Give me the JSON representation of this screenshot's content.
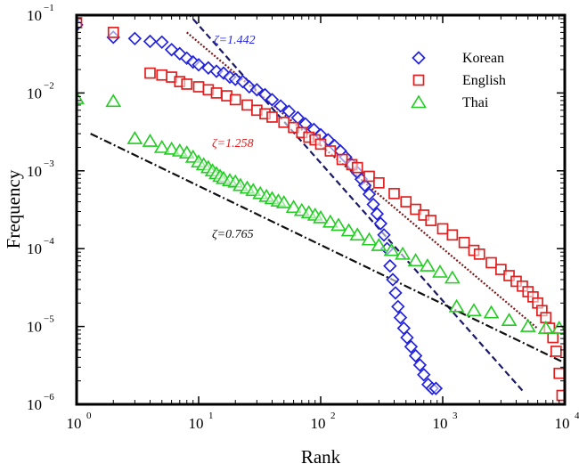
{
  "chart_data": {
    "type": "scatter",
    "xlabel": "Rank",
    "ylabel": "Frequency",
    "xscale": "log",
    "yscale": "log",
    "xlim": [
      1,
      10000
    ],
    "ylim": [
      1e-06,
      0.1
    ],
    "x_ticks": [
      {
        "base": "10",
        "exp": "0"
      },
      {
        "base": "10",
        "exp": "1"
      },
      {
        "base": "10",
        "exp": "2"
      },
      {
        "base": "10",
        "exp": "3"
      },
      {
        "base": "10",
        "exp": "4"
      }
    ],
    "y_ticks": [
      {
        "base": "10",
        "exp": "−6"
      },
      {
        "base": "10",
        "exp": "−5"
      },
      {
        "base": "10",
        "exp": "−4"
      },
      {
        "base": "10",
        "exp": "−3"
      },
      {
        "base": "10",
        "exp": "−2"
      },
      {
        "base": "10",
        "exp": "−1"
      }
    ],
    "legend_position": "top-right",
    "grid": false,
    "series": [
      {
        "name": "Korean",
        "marker": "diamond",
        "color": "#2222dd",
        "points": [
          [
            1,
            0.075
          ],
          [
            2,
            0.052
          ],
          [
            3,
            0.05
          ],
          [
            4,
            0.046
          ],
          [
            5,
            0.045
          ],
          [
            6,
            0.036
          ],
          [
            7,
            0.032
          ],
          [
            8,
            0.028
          ],
          [
            9,
            0.025
          ],
          [
            10,
            0.023
          ],
          [
            12,
            0.021
          ],
          [
            14,
            0.019
          ],
          [
            16,
            0.018
          ],
          [
            18,
            0.016
          ],
          [
            20,
            0.015
          ],
          [
            23,
            0.014
          ],
          [
            26,
            0.012
          ],
          [
            30,
            0.011
          ],
          [
            35,
            0.0095
          ],
          [
            40,
            0.0082
          ],
          [
            47,
            0.0068
          ],
          [
            55,
            0.0058
          ],
          [
            65,
            0.0048
          ],
          [
            75,
            0.004
          ],
          [
            88,
            0.0034
          ],
          [
            100,
            0.0029
          ],
          [
            115,
            0.0025
          ],
          [
            130,
            0.0021
          ],
          [
            145,
            0.0018
          ],
          [
            160,
            0.0015
          ],
          [
            180,
            0.0012
          ],
          [
            200,
            0.00095
          ],
          [
            215,
            0.00078
          ],
          [
            230,
            0.00065
          ],
          [
            250,
            0.0005
          ],
          [
            270,
            0.00037
          ],
          [
            290,
            0.00028
          ],
          [
            310,
            0.00021
          ],
          [
            330,
            0.00015
          ],
          [
            350,
            0.0001
          ],
          [
            370,
            6e-05
          ],
          [
            390,
            4e-05
          ],
          [
            410,
            2.7e-05
          ],
          [
            430,
            1.8e-05
          ],
          [
            450,
            1.3e-05
          ],
          [
            480,
            9.5e-06
          ],
          [
            510,
            7.2e-06
          ],
          [
            550,
            5.5e-06
          ],
          [
            600,
            4.2e-06
          ],
          [
            650,
            3.2e-06
          ],
          [
            700,
            2.4e-06
          ],
          [
            760,
            1.8e-06
          ],
          [
            820,
            1.6e-06
          ],
          [
            880,
            1.6e-06
          ]
        ]
      },
      {
        "name": "English",
        "marker": "square",
        "color": "#e02020",
        "points": [
          [
            1,
            0.08
          ],
          [
            2,
            0.06
          ],
          [
            4,
            0.018
          ],
          [
            5,
            0.017
          ],
          [
            6,
            0.016
          ],
          [
            7,
            0.014
          ],
          [
            8,
            0.013
          ],
          [
            10,
            0.012
          ],
          [
            12,
            0.011
          ],
          [
            14,
            0.01
          ],
          [
            17,
            0.0092
          ],
          [
            20,
            0.0082
          ],
          [
            25,
            0.007
          ],
          [
            30,
            0.006
          ],
          [
            35,
            0.0054
          ],
          [
            40,
            0.0049
          ],
          [
            50,
            0.0042
          ],
          [
            60,
            0.0036
          ],
          [
            70,
            0.0031
          ],
          [
            80,
            0.0027
          ],
          [
            90,
            0.0025
          ],
          [
            100,
            0.0022
          ],
          [
            120,
            0.0018
          ],
          [
            150,
            0.0014
          ],
          [
            180,
            0.0012
          ],
          [
            200,
            0.0011
          ],
          [
            250,
            0.00085
          ],
          [
            300,
            0.0007
          ],
          [
            400,
            0.00051
          ],
          [
            500,
            0.0004
          ],
          [
            600,
            0.00032
          ],
          [
            700,
            0.00027
          ],
          [
            800,
            0.00023
          ],
          [
            1000,
            0.00018
          ],
          [
            1200,
            0.00015
          ],
          [
            1500,
            0.00012
          ],
          [
            1800,
            9.5e-05
          ],
          [
            2000,
            8.5e-05
          ],
          [
            2500,
            6.6e-05
          ],
          [
            3000,
            5.4e-05
          ],
          [
            3500,
            4.5e-05
          ],
          [
            4000,
            3.8e-05
          ],
          [
            4500,
            3.3e-05
          ],
          [
            5000,
            2.8e-05
          ],
          [
            5500,
            2.4e-05
          ],
          [
            6000,
            2e-05
          ],
          [
            6500,
            1.6e-05
          ],
          [
            7000,
            1.3e-05
          ],
          [
            7500,
            9.5e-06
          ],
          [
            8000,
            7.2e-06
          ],
          [
            8500,
            4.8e-06
          ],
          [
            9000,
            2.5e-06
          ],
          [
            9500,
            1.3e-06
          ]
        ]
      },
      {
        "name": "Thai",
        "marker": "triangle",
        "color": "#22cc22",
        "points": [
          [
            1,
            0.0085
          ],
          [
            2,
            0.0078
          ],
          [
            3,
            0.0026
          ],
          [
            4,
            0.0024
          ],
          [
            5,
            0.002
          ],
          [
            6,
            0.0019
          ],
          [
            7,
            0.0018
          ],
          [
            8,
            0.0017
          ],
          [
            9,
            0.0015
          ],
          [
            10,
            0.0013
          ],
          [
            11,
            0.0012
          ],
          [
            12,
            0.0011
          ],
          [
            13,
            0.001
          ],
          [
            14,
            0.00092
          ],
          [
            15,
            0.00085
          ],
          [
            16,
            0.0008
          ],
          [
            18,
            0.00075
          ],
          [
            20,
            0.00072
          ],
          [
            22,
            0.00065
          ],
          [
            25,
            0.0006
          ],
          [
            28,
            0.00056
          ],
          [
            32,
            0.00051
          ],
          [
            36,
            0.00047
          ],
          [
            40,
            0.00044
          ],
          [
            45,
            0.00041
          ],
          [
            50,
            0.00039
          ],
          [
            60,
            0.00034
          ],
          [
            70,
            0.00031
          ],
          [
            80,
            0.00029
          ],
          [
            90,
            0.00027
          ],
          [
            100,
            0.00025
          ],
          [
            120,
            0.00022
          ],
          [
            140,
            0.0002
          ],
          [
            170,
            0.00017
          ],
          [
            200,
            0.00015
          ],
          [
            250,
            0.00013
          ],
          [
            300,
            0.00011
          ],
          [
            380,
            9.5e-05
          ],
          [
            470,
            8.5e-05
          ],
          [
            600,
            7e-05
          ],
          [
            750,
            6e-05
          ],
          [
            950,
            5e-05
          ],
          [
            1200,
            4.2e-05
          ],
          [
            1300,
            1.8e-05
          ],
          [
            1800,
            1.6e-05
          ],
          [
            2500,
            1.5e-05
          ],
          [
            3500,
            1.2e-05
          ],
          [
            5000,
            1e-05
          ],
          [
            7000,
            9.5e-06
          ],
          [
            9000,
            9.5e-06
          ]
        ]
      }
    ],
    "fit_lines": [
      {
        "label": "ζ=1.442",
        "color": "#1a1a66",
        "style": "dashed",
        "from": [
          8,
          0.11
        ],
        "to": [
          4500,
          1.5e-06
        ]
      },
      {
        "label": "ζ=1.258",
        "color": "#7a1a1a",
        "style": "dotted",
        "from": [
          8,
          0.06
        ],
        "to": [
          6000,
          9.4e-06
        ]
      },
      {
        "label": "ζ=0.765",
        "color": "#111111",
        "style": "dash-dot",
        "from": [
          1.3,
          0.003
        ],
        "to": [
          10000,
          3.4e-06
        ]
      }
    ]
  }
}
